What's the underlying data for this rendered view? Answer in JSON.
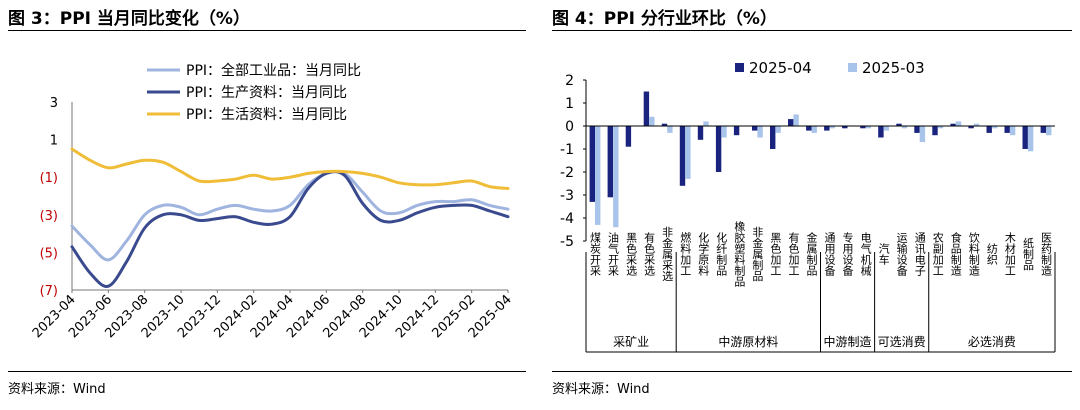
{
  "left_panel": {
    "title": "图 3：PPI 当月同比变化（%）",
    "source": "资料来源：Wind"
  },
  "right_panel": {
    "title": "图 4：PPI 分行业环比（%）",
    "source": "资料来源：Wind"
  },
  "colors": {
    "ppi_all": "#9fb4df",
    "ppi_production": "#3a4a8e",
    "ppi_living": "#f0bd38",
    "bar_2025_04": "#1a237e",
    "bar_2025_03": "#a9c4ea",
    "negative_tick": "#c00000"
  },
  "chart_data": [
    {
      "type": "line",
      "title": "",
      "xlabel": "",
      "ylabel": "",
      "ylim": [
        -7,
        3
      ],
      "y_ticks": [
        3,
        1,
        -1,
        -3,
        -5,
        -7
      ],
      "y_tick_labels": [
        "3",
        "1",
        "(1)",
        "(3)",
        "(5)",
        "(7)"
      ],
      "x": [
        "2023-04",
        "2023-05",
        "2023-06",
        "2023-07",
        "2023-08",
        "2023-09",
        "2023-10",
        "2023-11",
        "2023-12",
        "2024-01",
        "2024-02",
        "2024-03",
        "2024-04",
        "2024-05",
        "2024-06",
        "2024-07",
        "2024-08",
        "2024-09",
        "2024-10",
        "2024-11",
        "2024-12",
        "2025-01",
        "2025-02",
        "2025-03",
        "2025-04"
      ],
      "x_tick_labels": [
        "2023-04",
        "2023-06",
        "2023-08",
        "2023-10",
        "2023-12",
        "2024-02",
        "2024-04",
        "2024-06",
        "2024-08",
        "2024-10",
        "2024-12",
        "2025-02",
        "2025-04"
      ],
      "legend_position": "top-left",
      "grid": false,
      "series": [
        {
          "name": "PPI：全部工业品：当月同比",
          "values": [
            -3.6,
            -4.6,
            -5.4,
            -4.4,
            -3.0,
            -2.5,
            -2.6,
            -3.0,
            -2.7,
            -2.5,
            -2.7,
            -2.8,
            -2.5,
            -1.4,
            -0.8,
            -0.8,
            -1.8,
            -2.8,
            -2.9,
            -2.5,
            -2.3,
            -2.3,
            -2.2,
            -2.5,
            -2.7
          ]
        },
        {
          "name": "PPI：生产资料：当月同比",
          "values": [
            -4.7,
            -6.1,
            -6.8,
            -5.5,
            -3.7,
            -3.0,
            -3.0,
            -3.3,
            -3.2,
            -3.1,
            -3.4,
            -3.5,
            -3.1,
            -1.6,
            -0.8,
            -0.9,
            -2.4,
            -3.3,
            -3.3,
            -2.9,
            -2.6,
            -2.5,
            -2.5,
            -2.8,
            -3.1
          ]
        },
        {
          "name": "PPI：生活资料：当月同比",
          "values": [
            0.5,
            -0.1,
            -0.5,
            -0.3,
            -0.1,
            -0.2,
            -0.7,
            -1.2,
            -1.2,
            -1.1,
            -0.9,
            -1.1,
            -1.0,
            -0.8,
            -0.7,
            -0.7,
            -0.8,
            -1.0,
            -1.3,
            -1.4,
            -1.4,
            -1.3,
            -1.2,
            -1.5,
            -1.6
          ]
        }
      ]
    },
    {
      "type": "bar",
      "title": "",
      "xlabel": "",
      "ylabel": "",
      "ylim": [
        -5,
        2
      ],
      "y_ticks": [
        2,
        1,
        0,
        -1,
        -2,
        -3,
        -4,
        -5
      ],
      "legend_position": "top",
      "grid": false,
      "categories": [
        "煤炭开采",
        "油气开采",
        "黑色采选",
        "有色采选",
        "非金属采选",
        "燃料加工",
        "化学原料",
        "化纤制品",
        "橡胶塑料制品",
        "非金属制品",
        "黑色加工",
        "有色加工",
        "金属制品",
        "通用设备",
        "专用设备",
        "电气机械",
        "汽车",
        "运输设备",
        "通讯电子",
        "农副加工",
        "食品制造",
        "饮料制造",
        "纺织",
        "木材加工",
        "纸制品",
        "医药制造"
      ],
      "groups": [
        {
          "label": "采矿业",
          "count": 5
        },
        {
          "label": "中游原材料",
          "count": 8
        },
        {
          "label": "中游制造",
          "count": 3
        },
        {
          "label": "可选消费",
          "count": 3
        },
        {
          "label": "必选消费",
          "count": 7
        }
      ],
      "series": [
        {
          "name": "2025-04",
          "values": [
            -3.3,
            -3.1,
            -0.9,
            1.5,
            0.1,
            -2.6,
            -0.6,
            -2.0,
            -0.4,
            -0.2,
            -1.0,
            0.3,
            -0.2,
            -0.2,
            -0.1,
            -0.1,
            -0.5,
            0.1,
            -0.3,
            -0.4,
            0.1,
            -0.1,
            -0.3,
            -0.3,
            -1.0,
            -0.3
          ]
        },
        {
          "name": "2025-03",
          "values": [
            -4.3,
            -4.4,
            0.0,
            0.4,
            -0.3,
            -2.3,
            0.2,
            -0.5,
            0.0,
            -0.5,
            -0.3,
            0.5,
            -0.3,
            -0.1,
            0.0,
            -0.1,
            -0.2,
            -0.1,
            -0.7,
            -0.1,
            0.2,
            0.1,
            -0.1,
            -0.4,
            -1.1,
            -0.4
          ]
        }
      ]
    }
  ]
}
